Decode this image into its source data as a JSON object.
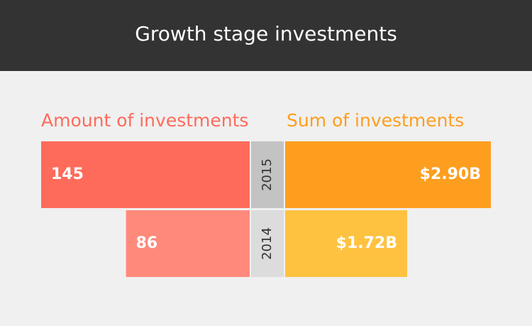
{
  "chart_data": {
    "type": "butterfly",
    "title": "Growth stage investments",
    "categories": [
      "2015",
      "2014"
    ],
    "category_colors": [
      "#c3c3c3",
      "#dcdcdc"
    ],
    "series": [
      {
        "name": "Amount of investments",
        "color": "#fe6b5b",
        "colors": [
          "#fe6b5b",
          "#ff8a7c"
        ],
        "values": [
          145,
          86
        ]
      },
      {
        "name": "Sum of investments",
        "color": "#fd9e1f",
        "colors": [
          "#fd9e1f",
          "#ffc240"
        ],
        "values": [
          2.9,
          1.72
        ],
        "value_labels": [
          "$2.90B",
          "$1.72B"
        ]
      }
    ]
  }
}
